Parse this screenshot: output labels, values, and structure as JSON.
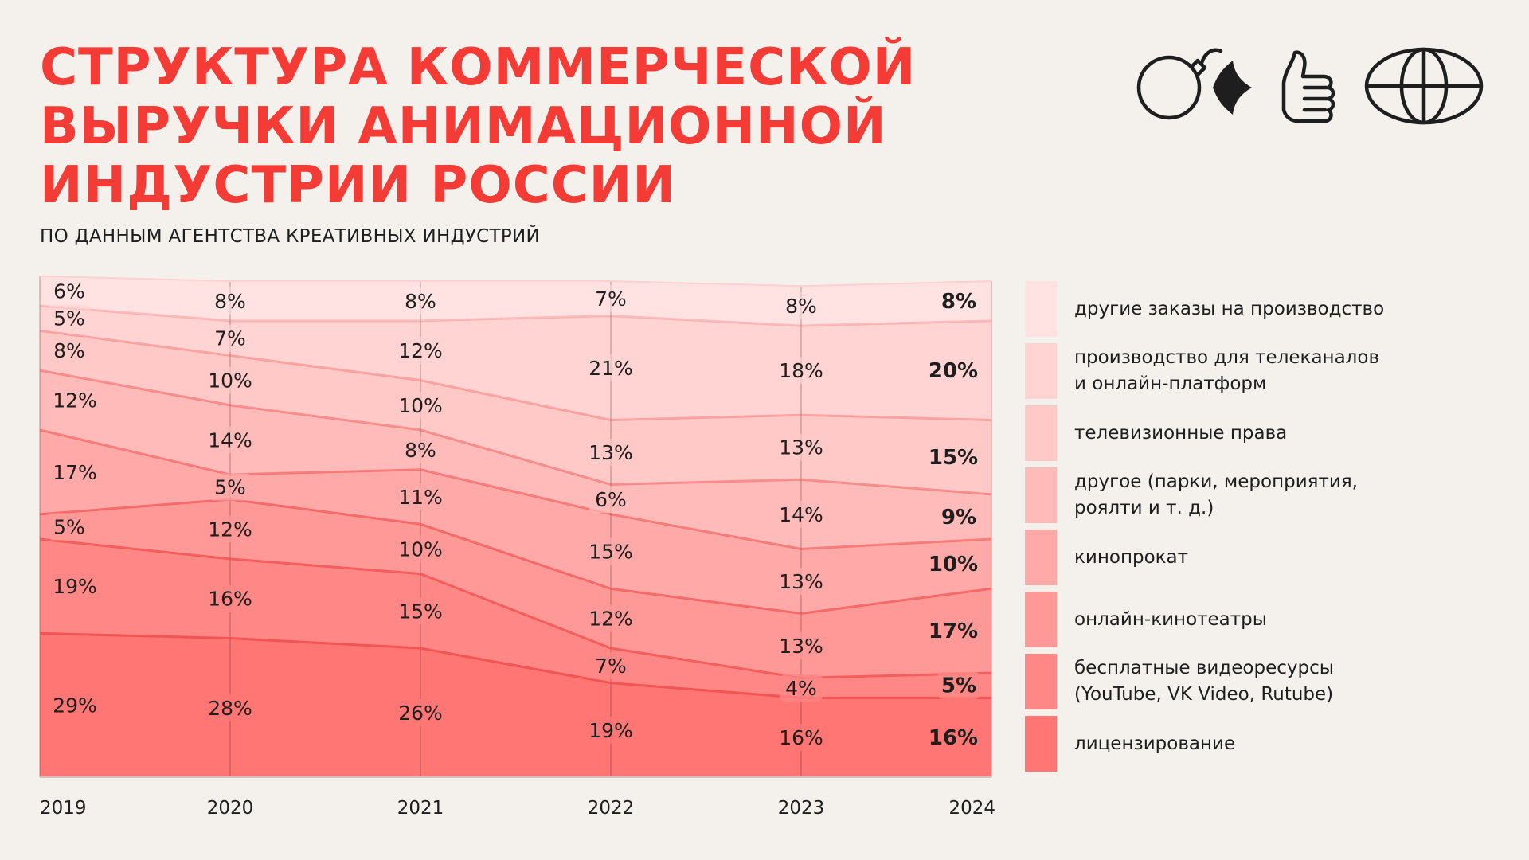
{
  "title_lines": [
    "СТРУКТУРА КОММЕРЧЕСКОЙ",
    "ВЫРУЧКИ АНИМАЦИОННОЙ",
    "ИНДУСТРИИ РОССИИ"
  ],
  "subtitle": "ПО ДАННЫМ АГЕНТСТВА КРЕАТИВНЫХ ИНДУСТРИЙ",
  "icons": [
    "bomb-icon",
    "sparkle-icon",
    "thumbs-up-icon",
    "globe-icon"
  ],
  "chart_data": {
    "type": "area",
    "stacked": true,
    "x": [
      "2019",
      "2020",
      "2021",
      "2022",
      "2023",
      "2024"
    ],
    "ylim": [
      0,
      100
    ],
    "label_format": "percent",
    "highlight_last_column": true,
    "series": [
      {
        "name": "лицензирование",
        "values": [
          29,
          28,
          26,
          19,
          16,
          16
        ],
        "color": "#ff7675"
      },
      {
        "name": "бесплатные видеоресурсы (YouTube, VK Video, Rutube)",
        "values": [
          19,
          16,
          15,
          7,
          4,
          5
        ],
        "color": "#ff8786"
      },
      {
        "name": "онлайн-кинотеатры",
        "values": [
          5,
          12,
          10,
          12,
          13,
          17
        ],
        "color": "#ff9998"
      },
      {
        "name": "кинопрокат",
        "values": [
          17,
          5,
          11,
          15,
          13,
          10
        ],
        "color": "#ffaaa9"
      },
      {
        "name": "другое (парки, мероприятия, роялти и т. д.)",
        "values": [
          12,
          14,
          8,
          6,
          14,
          9
        ],
        "color": "#ffbbba"
      },
      {
        "name": "телевизионные права",
        "values": [
          8,
          10,
          10,
          13,
          13,
          15
        ],
        "color": "#ffc9c8"
      },
      {
        "name": "производство для телеканалов и онлайн-платформ",
        "values": [
          5,
          7,
          12,
          21,
          18,
          20
        ],
        "color": "#ffd4d3"
      },
      {
        "name": "другие заказы на производство",
        "values": [
          6,
          8,
          8,
          7,
          8,
          8
        ],
        "color": "#ffe2e1"
      }
    ]
  },
  "legend": [
    {
      "label": "другие заказы на производство",
      "color": "#ffe2e1"
    },
    {
      "label": "производство для телеканалов\nи онлайн-платформ",
      "color": "#ffd4d3"
    },
    {
      "label": "телевизионные права",
      "color": "#ffc9c8"
    },
    {
      "label": "другое (парки, мероприятия,\nроялти и т. д.)",
      "color": "#ffbbba"
    },
    {
      "label": "кинопрокат",
      "color": "#ffaaa9"
    },
    {
      "label": "онлайн-кинотеатры",
      "color": "#ff9998"
    },
    {
      "label": "бесплатные видеоресурсы\n(YouTube, VK Video, Rutube)",
      "color": "#ff8786"
    },
    {
      "label": "лицензирование",
      "color": "#ff7675"
    }
  ],
  "colors": {
    "accent": "#f43b35",
    "background": "#f4f1ed",
    "line": "#f04c4a",
    "text": "#1e1e1e"
  }
}
